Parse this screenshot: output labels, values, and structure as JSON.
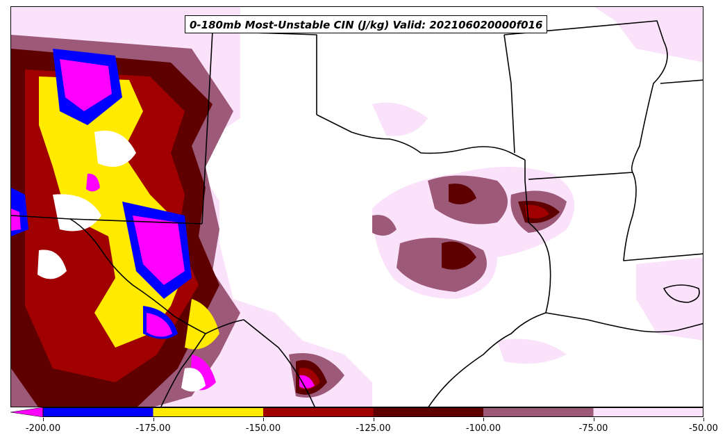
{
  "title": "0-180mb Most-Unstable CIN (J/kg) Valid: 202106020000f016",
  "colorbar": {
    "ticks": [
      "-200.00",
      "-175.00",
      "-150.00",
      "-125.00",
      "-100.00",
      "-75.00",
      "-50.00"
    ],
    "bins": [
      {
        "min": -200,
        "max": -175,
        "color": "#0000ff"
      },
      {
        "min": -175,
        "max": -150,
        "color": "#ffea00"
      },
      {
        "min": -150,
        "max": -125,
        "color": "#a00000"
      },
      {
        "min": -125,
        "max": -100,
        "color": "#5e0000"
      },
      {
        "min": -100,
        "max": -75,
        "color": "#9c5a78"
      },
      {
        "min": -75,
        "max": -50,
        "color": "#fbe2fb"
      }
    ],
    "under_color": "#ff00ff",
    "extend": "min"
  },
  "colors": {
    "boundary": "#000000",
    "background": "#ffffff"
  }
}
